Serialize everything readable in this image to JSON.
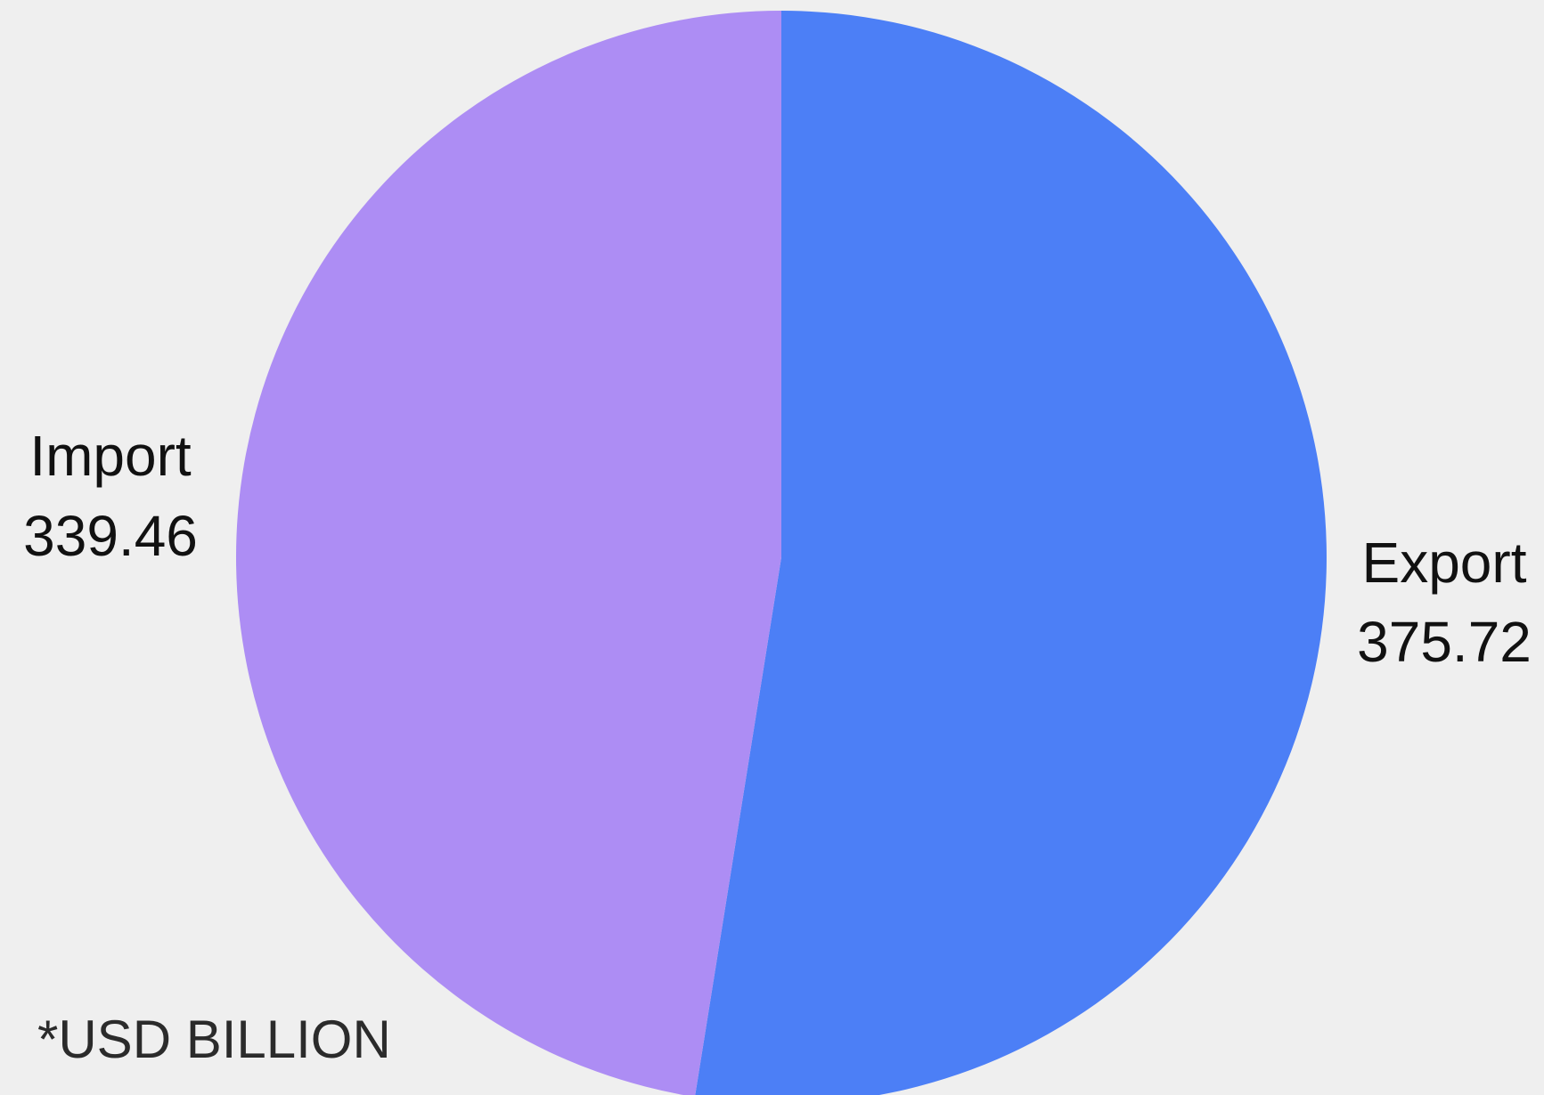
{
  "chart_data": {
    "type": "pie",
    "slices": [
      {
        "label": "Export",
        "value": 375.72,
        "display_value": "375.72",
        "color": "#4c7ff6"
      },
      {
        "label": "Import",
        "value": 339.46,
        "display_value": "339.46",
        "color": "#ad8df4"
      }
    ],
    "start_angle": "12 o'clock",
    "direction": "clockwise",
    "legend": "none",
    "note": "*USD BILLION"
  },
  "colors": {
    "background": "#efefef",
    "label_text": "#111111",
    "note_text": "#2b2b2b"
  }
}
